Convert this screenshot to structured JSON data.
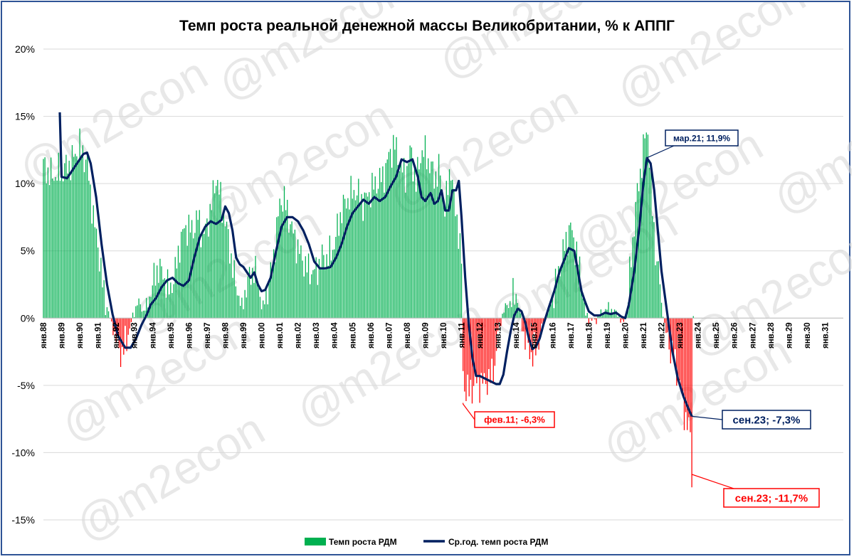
{
  "chart_data": {
    "type": "bar",
    "title": "Темп роста реальной денежной массы Великобритании, % к АППГ",
    "ylim": [
      -15,
      20
    ],
    "y_ticks": [
      "20%",
      "15%",
      "10%",
      "5%",
      "0%",
      "-5%",
      "-10%",
      "-15%"
    ],
    "y_tick_values": [
      20,
      15,
      10,
      5,
      0,
      -5,
      -10,
      -15
    ],
    "x_start_year": 1988,
    "x_tick_labels": [
      "янв.88",
      "янв.89",
      "янв.90",
      "янв.91",
      "янв.92",
      "янв.93",
      "янв.94",
      "янв.95",
      "янв.96",
      "янв.97",
      "янв.98",
      "янв.99",
      "янв.00",
      "янв.01",
      "янв.02",
      "янв.03",
      "янв.04",
      "янв.05",
      "янв.06",
      "янв.07",
      "янв.08",
      "янв.09",
      "янв.10",
      "янв.11",
      "янв.12",
      "янв.13",
      "янв.14",
      "янв.15",
      "янв.16",
      "янв.17",
      "янв.18",
      "янв.19",
      "янв.20",
      "янв.21",
      "янв.22",
      "янв.23",
      "янв.24",
      "янв.25",
      "янв.26",
      "янв.27",
      "янв.28",
      "янв.29",
      "янв.30",
      "янв.31"
    ],
    "grid": true,
    "legend_position": "bottom",
    "colors": {
      "positive": "#00b050",
      "negative": "#ff0000",
      "line": "#002060",
      "red_label": "#ff0000",
      "blue_label": "#002060"
    },
    "series": [
      {
        "name": "Темп роста РДМ",
        "kind": "bar",
        "anchors": [
          [
            1988.0,
            11.3
          ],
          [
            1988.5,
            10.5
          ],
          [
            1989.0,
            11.0
          ],
          [
            1989.5,
            11.5
          ],
          [
            1990.0,
            12.8
          ],
          [
            1990.4,
            11.5
          ],
          [
            1990.8,
            7.0
          ],
          [
            1991.0,
            5.5
          ],
          [
            1991.3,
            2.0
          ],
          [
            1991.6,
            0.3
          ],
          [
            1991.75,
            -0.5
          ],
          [
            1992.0,
            -1.5
          ],
          [
            1992.3,
            -2.8
          ],
          [
            1992.6,
            -1.5
          ],
          [
            1992.9,
            0.0
          ],
          [
            1993.2,
            1.3
          ],
          [
            1993.5,
            0.5
          ],
          [
            1993.8,
            1.5
          ],
          [
            1994.0,
            2.5
          ],
          [
            1994.3,
            3.8
          ],
          [
            1994.6,
            3.2
          ],
          [
            1994.9,
            2.0
          ],
          [
            1995.2,
            3.0
          ],
          [
            1995.5,
            5.5
          ],
          [
            1995.8,
            6.8
          ],
          [
            1996.2,
            6.5
          ],
          [
            1996.5,
            7.5
          ],
          [
            1996.8,
            6.0
          ],
          [
            1997.2,
            8.0
          ],
          [
            1997.5,
            10.5
          ],
          [
            1997.8,
            8.5
          ],
          [
            1998.1,
            6.5
          ],
          [
            1998.5,
            3.0
          ],
          [
            1998.9,
            1.0
          ],
          [
            1999.2,
            2.5
          ],
          [
            1999.6,
            3.8
          ],
          [
            1999.9,
            2.0
          ],
          [
            2000.1,
            0.8
          ],
          [
            2000.4,
            2.5
          ],
          [
            2000.7,
            5.0
          ],
          [
            2001.0,
            8.5
          ],
          [
            2001.2,
            9.0
          ],
          [
            2001.5,
            7.5
          ],
          [
            2001.8,
            6.0
          ],
          [
            2002.2,
            4.5
          ],
          [
            2002.6,
            3.5
          ],
          [
            2003.0,
            3.5
          ],
          [
            2003.3,
            4.5
          ],
          [
            2003.7,
            4.5
          ],
          [
            2004.0,
            5.5
          ],
          [
            2004.4,
            8.0
          ],
          [
            2004.8,
            9.0
          ],
          [
            2005.2,
            9.5
          ],
          [
            2005.6,
            8.5
          ],
          [
            2006.0,
            9.5
          ],
          [
            2006.3,
            10.0
          ],
          [
            2006.7,
            10.5
          ],
          [
            2007.0,
            12.0
          ],
          [
            2007.3,
            13.0
          ],
          [
            2007.6,
            11.5
          ],
          [
            2007.9,
            10.5
          ],
          [
            2008.2,
            12.5
          ],
          [
            2008.5,
            10.0
          ],
          [
            2008.8,
            12.5
          ],
          [
            2009.1,
            12.0
          ],
          [
            2009.5,
            10.5
          ],
          [
            2009.8,
            11.0
          ],
          [
            2010.1,
            8.0
          ],
          [
            2010.4,
            11.5
          ],
          [
            2010.6,
            8.5
          ],
          [
            2010.8,
            7.0
          ],
          [
            2011.0,
            4.0
          ],
          [
            2011.05,
            -2.5
          ],
          [
            2011.1,
            -5.0
          ],
          [
            2011.4,
            -5.5
          ],
          [
            2011.8,
            -4.8
          ],
          [
            2012.2,
            -4.8
          ],
          [
            2012.6,
            -4.5
          ],
          [
            2012.9,
            -3.0
          ],
          [
            2013.0,
            -1.0
          ],
          [
            2013.2,
            0.0
          ],
          [
            2013.4,
            0.8
          ],
          [
            2013.7,
            1.2
          ],
          [
            2014.0,
            2.0
          ],
          [
            2014.2,
            0.5
          ],
          [
            2014.3,
            -0.5
          ],
          [
            2014.6,
            -2.0
          ],
          [
            2014.9,
            -2.8
          ],
          [
            2015.2,
            -2.0
          ],
          [
            2015.5,
            -0.3
          ],
          [
            2015.8,
            0.5
          ],
          [
            2016.1,
            2.0
          ],
          [
            2016.4,
            3.8
          ],
          [
            2016.7,
            5.5
          ],
          [
            2017.0,
            6.8
          ],
          [
            2017.3,
            5.0
          ],
          [
            2017.6,
            3.0
          ],
          [
            2017.8,
            0.3
          ],
          [
            2017.95,
            0.0
          ],
          [
            2018.2,
            -0.2
          ],
          [
            2018.5,
            0.0
          ],
          [
            2018.8,
            0.5
          ],
          [
            2019.1,
            0.8
          ],
          [
            2019.4,
            0.5
          ],
          [
            2019.7,
            0.0
          ],
          [
            2019.9,
            -0.3
          ],
          [
            2020.1,
            0.5
          ],
          [
            2020.3,
            4.0
          ],
          [
            2020.6,
            8.5
          ],
          [
            2020.9,
            11.5
          ],
          [
            2021.1,
            13.5
          ],
          [
            2021.25,
            14.0
          ],
          [
            2021.5,
            8.0
          ],
          [
            2021.7,
            4.5
          ],
          [
            2021.9,
            3.0
          ],
          [
            2022.0,
            1.0
          ],
          [
            2022.15,
            -0.5
          ],
          [
            2022.4,
            -2.0
          ],
          [
            2022.7,
            -3.0
          ],
          [
            2023.0,
            -5.0
          ],
          [
            2023.2,
            -6.5
          ],
          [
            2023.4,
            -8.0
          ],
          [
            2023.6,
            -8.5
          ],
          [
            2023.67,
            -11.7
          ],
          [
            2023.75,
            0.0
          ]
        ]
      },
      {
        "name": "Ср.год. темп роста РДМ",
        "kind": "line",
        "points": [
          [
            1988.9,
            15.3
          ],
          [
            1989.0,
            10.5
          ],
          [
            1989.3,
            10.4
          ],
          [
            1989.6,
            11.0
          ],
          [
            1989.9,
            11.6
          ],
          [
            1990.2,
            12.2
          ],
          [
            1990.4,
            12.3
          ],
          [
            1990.6,
            11.5
          ],
          [
            1990.9,
            9.0
          ],
          [
            1991.2,
            5.5
          ],
          [
            1991.5,
            2.5
          ],
          [
            1991.8,
            0.3
          ],
          [
            1992.1,
            -1.3
          ],
          [
            1992.5,
            -2.2
          ],
          [
            1992.8,
            -2.2
          ],
          [
            1993.1,
            -1.5
          ],
          [
            1993.4,
            -0.5
          ],
          [
            1993.7,
            0.3
          ],
          [
            1993.9,
            1.0
          ],
          [
            1994.2,
            1.5
          ],
          [
            1994.5,
            2.3
          ],
          [
            1994.8,
            2.8
          ],
          [
            1995.1,
            3.0
          ],
          [
            1995.4,
            2.6
          ],
          [
            1995.7,
            2.4
          ],
          [
            1996.0,
            2.8
          ],
          [
            1996.3,
            4.5
          ],
          [
            1996.6,
            6.0
          ],
          [
            1996.9,
            6.8
          ],
          [
            1997.2,
            7.2
          ],
          [
            1997.5,
            7.0
          ],
          [
            1997.8,
            7.3
          ],
          [
            1998.0,
            8.3
          ],
          [
            1998.2,
            7.8
          ],
          [
            1998.4,
            6.5
          ],
          [
            1998.6,
            4.5
          ],
          [
            1998.8,
            4.0
          ],
          [
            1999.0,
            3.8
          ],
          [
            1999.2,
            3.4
          ],
          [
            1999.4,
            3.0
          ],
          [
            1999.6,
            3.4
          ],
          [
            1999.8,
            2.5
          ],
          [
            2000.0,
            2.0
          ],
          [
            2000.2,
            2.1
          ],
          [
            2000.5,
            3.0
          ],
          [
            2000.8,
            5.0
          ],
          [
            2001.1,
            6.8
          ],
          [
            2001.4,
            7.5
          ],
          [
            2001.7,
            7.5
          ],
          [
            2002.0,
            7.2
          ],
          [
            2002.3,
            6.5
          ],
          [
            2002.6,
            5.5
          ],
          [
            2002.9,
            4.2
          ],
          [
            2003.2,
            3.7
          ],
          [
            2003.5,
            3.7
          ],
          [
            2003.8,
            3.8
          ],
          [
            2004.1,
            4.5
          ],
          [
            2004.4,
            5.5
          ],
          [
            2004.7,
            6.8
          ],
          [
            2005.0,
            7.8
          ],
          [
            2005.3,
            8.3
          ],
          [
            2005.6,
            8.8
          ],
          [
            2005.9,
            8.5
          ],
          [
            2006.2,
            9.0
          ],
          [
            2006.5,
            8.7
          ],
          [
            2006.8,
            9.0
          ],
          [
            2007.1,
            9.8
          ],
          [
            2007.4,
            10.5
          ],
          [
            2007.7,
            11.8
          ],
          [
            2008.0,
            11.6
          ],
          [
            2008.3,
            11.8
          ],
          [
            2008.6,
            10.5
          ],
          [
            2008.8,
            9.0
          ],
          [
            2009.0,
            8.7
          ],
          [
            2009.3,
            9.3
          ],
          [
            2009.5,
            8.5
          ],
          [
            2009.7,
            8.7
          ],
          [
            2009.9,
            9.5
          ],
          [
            2010.1,
            8.0
          ],
          [
            2010.3,
            8.0
          ],
          [
            2010.5,
            9.5
          ],
          [
            2010.7,
            9.5
          ],
          [
            2010.85,
            10.2
          ],
          [
            2011.0,
            7.5
          ],
          [
            2011.2,
            3.0
          ],
          [
            2011.4,
            -0.5
          ],
          [
            2011.6,
            -3.0
          ],
          [
            2011.8,
            -4.3
          ],
          [
            2012.0,
            -4.3
          ],
          [
            2012.3,
            -4.5
          ],
          [
            2012.6,
            -4.7
          ],
          [
            2012.9,
            -4.9
          ],
          [
            2013.1,
            -4.9
          ],
          [
            2013.3,
            -4.2
          ],
          [
            2013.5,
            -2.5
          ],
          [
            2013.7,
            -1.0
          ],
          [
            2013.9,
            0.2
          ],
          [
            2014.1,
            0.7
          ],
          [
            2014.3,
            0.5
          ],
          [
            2014.5,
            -0.3
          ],
          [
            2014.7,
            -1.5
          ],
          [
            2014.9,
            -2.3
          ],
          [
            2015.1,
            -2.1
          ],
          [
            2015.3,
            -1.5
          ],
          [
            2015.5,
            -0.5
          ],
          [
            2015.8,
            0.8
          ],
          [
            2016.1,
            2.0
          ],
          [
            2016.4,
            3.5
          ],
          [
            2016.7,
            4.5
          ],
          [
            2016.9,
            5.2
          ],
          [
            2017.2,
            5.0
          ],
          [
            2017.4,
            3.5
          ],
          [
            2017.6,
            2.0
          ],
          [
            2017.8,
            1.2
          ],
          [
            2018.0,
            0.5
          ],
          [
            2018.3,
            0.2
          ],
          [
            2018.6,
            0.2
          ],
          [
            2018.9,
            0.4
          ],
          [
            2019.2,
            0.3
          ],
          [
            2019.5,
            0.4
          ],
          [
            2019.8,
            0.1
          ],
          [
            2020.0,
            0.0
          ],
          [
            2020.2,
            1.0
          ],
          [
            2020.5,
            3.5
          ],
          [
            2020.8,
            7.0
          ],
          [
            2021.0,
            10.0
          ],
          [
            2021.2,
            11.9
          ],
          [
            2021.4,
            11.5
          ],
          [
            2021.6,
            9.5
          ],
          [
            2021.8,
            6.5
          ],
          [
            2022.0,
            3.5
          ],
          [
            2022.3,
            0.5
          ],
          [
            2022.6,
            -2.5
          ],
          [
            2022.9,
            -4.5
          ],
          [
            2023.2,
            -5.8
          ],
          [
            2023.5,
            -6.8
          ],
          [
            2023.67,
            -7.3
          ]
        ]
      }
    ],
    "annotations": [
      {
        "text": "мар.21; 11,9%",
        "x": 2021.17,
        "y": 11.9,
        "color": "#002060"
      },
      {
        "text": "фев.11; -6,3%",
        "x": 2011.08,
        "y": -6.3,
        "color": "#ff0000"
      },
      {
        "text": "сен.23; -7,3%",
        "x": 2023.67,
        "y": -7.3,
        "color": "#002060"
      },
      {
        "text": "сен.23; -11,7%",
        "x": 2023.67,
        "y": -11.7,
        "color": "#ff0000"
      }
    ],
    "watermark": "@m2econ"
  }
}
